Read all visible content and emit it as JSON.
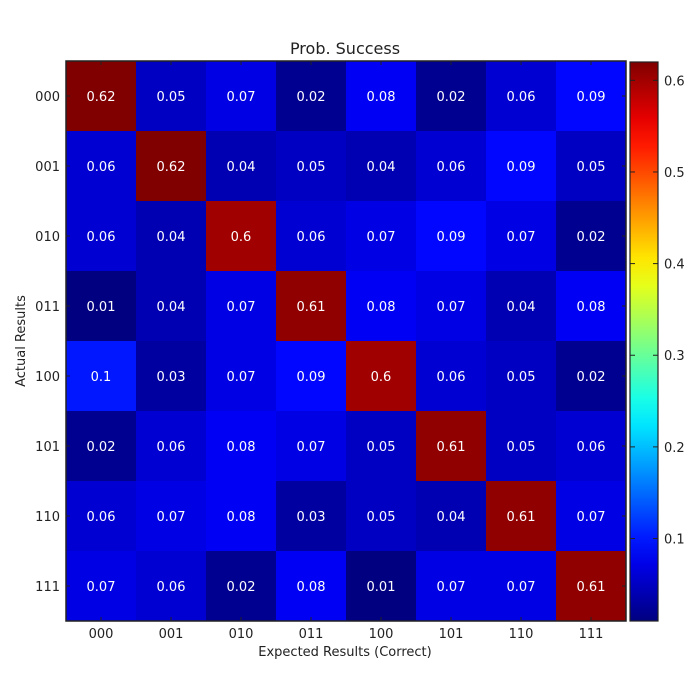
{
  "chart_data": {
    "type": "heatmap",
    "title": "Prob. Success",
    "xlabel": "Expected Results (Correct)",
    "ylabel": "Actual Results",
    "x_categories": [
      "000",
      "001",
      "010",
      "011",
      "100",
      "101",
      "110",
      "111"
    ],
    "y_categories": [
      "000",
      "001",
      "010",
      "011",
      "100",
      "101",
      "110",
      "111"
    ],
    "values": [
      [
        0.62,
        0.05,
        0.07,
        0.02,
        0.08,
        0.02,
        0.06,
        0.09
      ],
      [
        0.06,
        0.62,
        0.04,
        0.05,
        0.04,
        0.06,
        0.09,
        0.05
      ],
      [
        0.06,
        0.04,
        0.6,
        0.06,
        0.07,
        0.09,
        0.07,
        0.02
      ],
      [
        0.01,
        0.04,
        0.07,
        0.61,
        0.08,
        0.07,
        0.04,
        0.08
      ],
      [
        0.1,
        0.03,
        0.07,
        0.09,
        0.6,
        0.06,
        0.05,
        0.02
      ],
      [
        0.02,
        0.06,
        0.08,
        0.07,
        0.05,
        0.61,
        0.05,
        0.06
      ],
      [
        0.06,
        0.07,
        0.08,
        0.03,
        0.05,
        0.04,
        0.61,
        0.07
      ],
      [
        0.07,
        0.06,
        0.02,
        0.08,
        0.01,
        0.07,
        0.07,
        0.61
      ]
    ],
    "colormap": "jet",
    "color_range": [
      0.01,
      0.62
    ],
    "colorbar_ticks": [
      0.1,
      0.2,
      0.3,
      0.4,
      0.5,
      0.6
    ],
    "colorbar_tick_labels": [
      "0.1",
      "0.2",
      "0.3",
      "0.4",
      "0.5",
      "0.6"
    ],
    "cell_label_color": "#ffffff",
    "grid": false
  }
}
